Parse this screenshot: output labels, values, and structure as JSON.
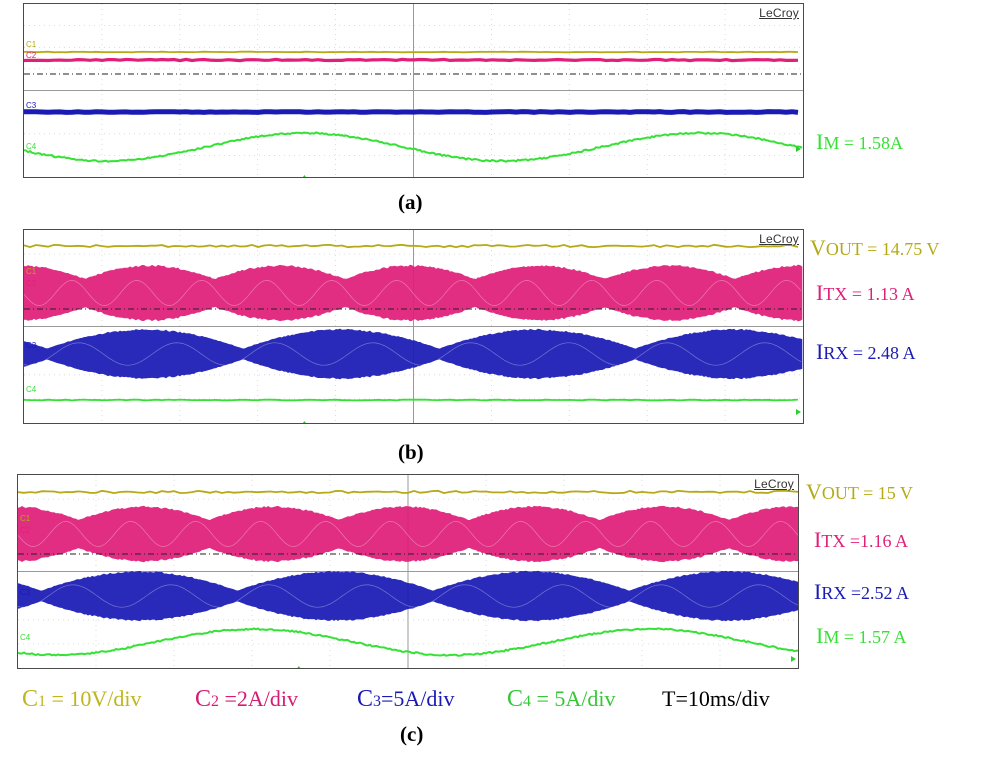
{
  "chart_data": [
    {
      "panel": "(a)",
      "type": "line",
      "brand": "LeCroy",
      "channels": [
        {
          "name": "C1",
          "shape": "dc",
          "color": "#b5aa16"
        },
        {
          "name": "C2",
          "shape": "dc",
          "color": "#e01f79"
        },
        {
          "name": "C3",
          "shape": "dc",
          "color": "#1a1ab5"
        },
        {
          "name": "C4",
          "shape": "sine",
          "color": "#35e135"
        }
      ],
      "measurements": [
        {
          "label": "I",
          "sub": "M",
          "value": " = 1.58A",
          "color": "#35e135"
        }
      ]
    },
    {
      "panel": "(b)",
      "type": "line",
      "brand": "LeCroy",
      "channels": [
        {
          "name": "C1",
          "shape": "dc",
          "color": "#b5aa16"
        },
        {
          "name": "C2",
          "shape": "burst",
          "color": "#e01f79"
        },
        {
          "name": "C3",
          "shape": "burst",
          "color": "#1a1ab5"
        },
        {
          "name": "C4",
          "shape": "dc",
          "color": "#35e135"
        }
      ],
      "measurements": [
        {
          "label": "V",
          "sub": "OUT",
          "value": " = 14.75 V",
          "color": "#b5aa16"
        },
        {
          "label": "I",
          "sub": "TX",
          "value": " = 1.13 A",
          "color": "#e01f79"
        },
        {
          "label": "I",
          "sub": "RX",
          "value": " = 2.48 A",
          "color": "#1a1ab5"
        }
      ]
    },
    {
      "panel": "(c)",
      "type": "line",
      "brand": "LeCroy",
      "channels": [
        {
          "name": "C1",
          "shape": "dc",
          "color": "#b5aa16"
        },
        {
          "name": "C2",
          "shape": "burst",
          "color": "#e01f79"
        },
        {
          "name": "C3",
          "shape": "burst",
          "color": "#1a1ab5"
        },
        {
          "name": "C4",
          "shape": "sine",
          "color": "#35e135"
        }
      ],
      "measurements": [
        {
          "label": "V",
          "sub": "OUT",
          "value": " = 15 V",
          "color": "#b5aa16"
        },
        {
          "label": "I",
          "sub": "TX",
          "value": " =1.16 A",
          "color": "#e01f79"
        },
        {
          "label": "I",
          "sub": "RX",
          "value": " =2.52 A",
          "color": "#1a1ab5"
        },
        {
          "label": "I",
          "sub": "M",
          "value": " = 1.57 A",
          "color": "#35e135"
        }
      ]
    }
  ],
  "legend": [
    {
      "label": "C",
      "sub": "1",
      "value": " = 10V/div",
      "color": "#c0b51c"
    },
    {
      "label": "C",
      "sub": "2",
      "value": " =2A/div",
      "color": "#d81b72"
    },
    {
      "label": "C",
      "sub": "3",
      "value": "=5A/div",
      "color": "#1a1ab5"
    },
    {
      "label": "C",
      "sub": "4",
      "value": " = 5A/div",
      "color": "#35c835"
    },
    {
      "label": "T=10ms/div",
      "sub": "",
      "value": "",
      "color": "#000000"
    }
  ]
}
